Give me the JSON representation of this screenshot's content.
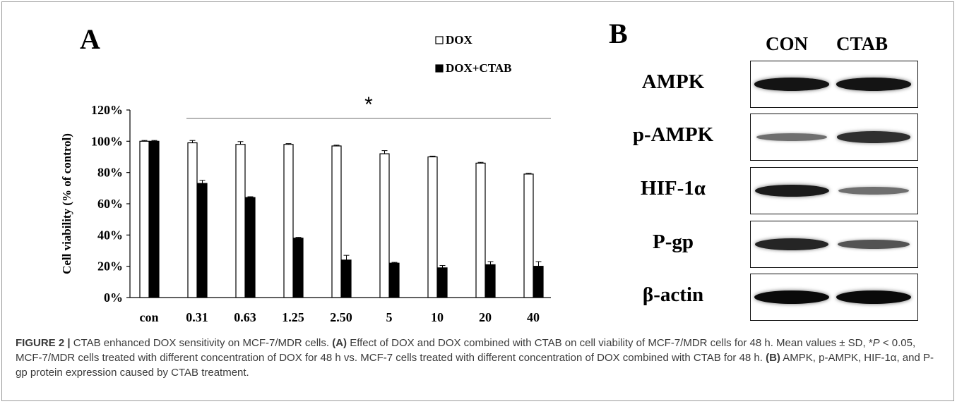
{
  "panels": {
    "a_label": "A",
    "b_label": "B"
  },
  "chart_data": {
    "type": "bar",
    "categories": [
      "con",
      "0.31",
      "0.63",
      "1.25",
      "2.50",
      "5",
      "10",
      "20",
      "40"
    ],
    "series": [
      {
        "name": "DOX",
        "values": [
          100,
          99,
          98,
          98,
          97,
          92,
          90,
          86,
          79
        ],
        "errors": [
          0.5,
          1.5,
          1.8,
          0.5,
          0.5,
          2.0,
          0.5,
          0.5,
          0.5
        ]
      },
      {
        "name": "DOX+CTAB",
        "values": [
          100,
          73,
          64,
          38,
          24,
          22,
          19,
          21,
          20
        ],
        "errors": [
          0.5,
          2.0,
          0.5,
          0.5,
          3.0,
          0.5,
          1.5,
          2.0,
          3.0
        ]
      }
    ],
    "xlabel": "",
    "ylabel": "Cell viability (% of control)",
    "ylim": [
      0,
      120
    ],
    "yticks": [
      "0%",
      "20%",
      "40%",
      "60%",
      "80%",
      "100%",
      "120%"
    ],
    "yticks_values": [
      0,
      20,
      40,
      60,
      80,
      100,
      120
    ],
    "legend_position": "top-right",
    "significance_marker": "*",
    "colors": {
      "DOX": "#ffffff",
      "DOX+CTAB": "#000000",
      "outline": "#000000"
    }
  },
  "blot": {
    "headers": [
      "CON",
      "CTAB"
    ],
    "rows": [
      {
        "label": "AMPK",
        "intensity": [
          0.95,
          0.95
        ]
      },
      {
        "label": "p-AMPK",
        "intensity": [
          0.45,
          0.8
        ]
      },
      {
        "label": "HIF-1α",
        "intensity": [
          0.9,
          0.45
        ]
      },
      {
        "label": "P-gp",
        "intensity": [
          0.85,
          0.6
        ]
      },
      {
        "label": "β-actin",
        "intensity": [
          1.0,
          1.0
        ]
      }
    ]
  },
  "caption": {
    "figure_label": "FIGURE 2 |",
    "title": " CTAB enhanced DOX sensitivity on MCF-7/MDR cells. ",
    "a_ref": "(A)",
    "a_text_1": " Effect of DOX and DOX combined with CTAB on cell viability of MCF-7/MDR cells for 48 h. Mean values ± SD, *",
    "p_symbol": "P",
    "a_text_2": " < 0.05, MCF-7/MDR cells treated with different concentration of DOX for 48 h vs. MCF-7 cells treated with different concentration of DOX combined with CTAB for 48 h. ",
    "b_ref": "(B)",
    "b_text": " AMPK, p-AMPK, HIF-1α, and P-gp protein expression caused by CTAB treatment."
  }
}
